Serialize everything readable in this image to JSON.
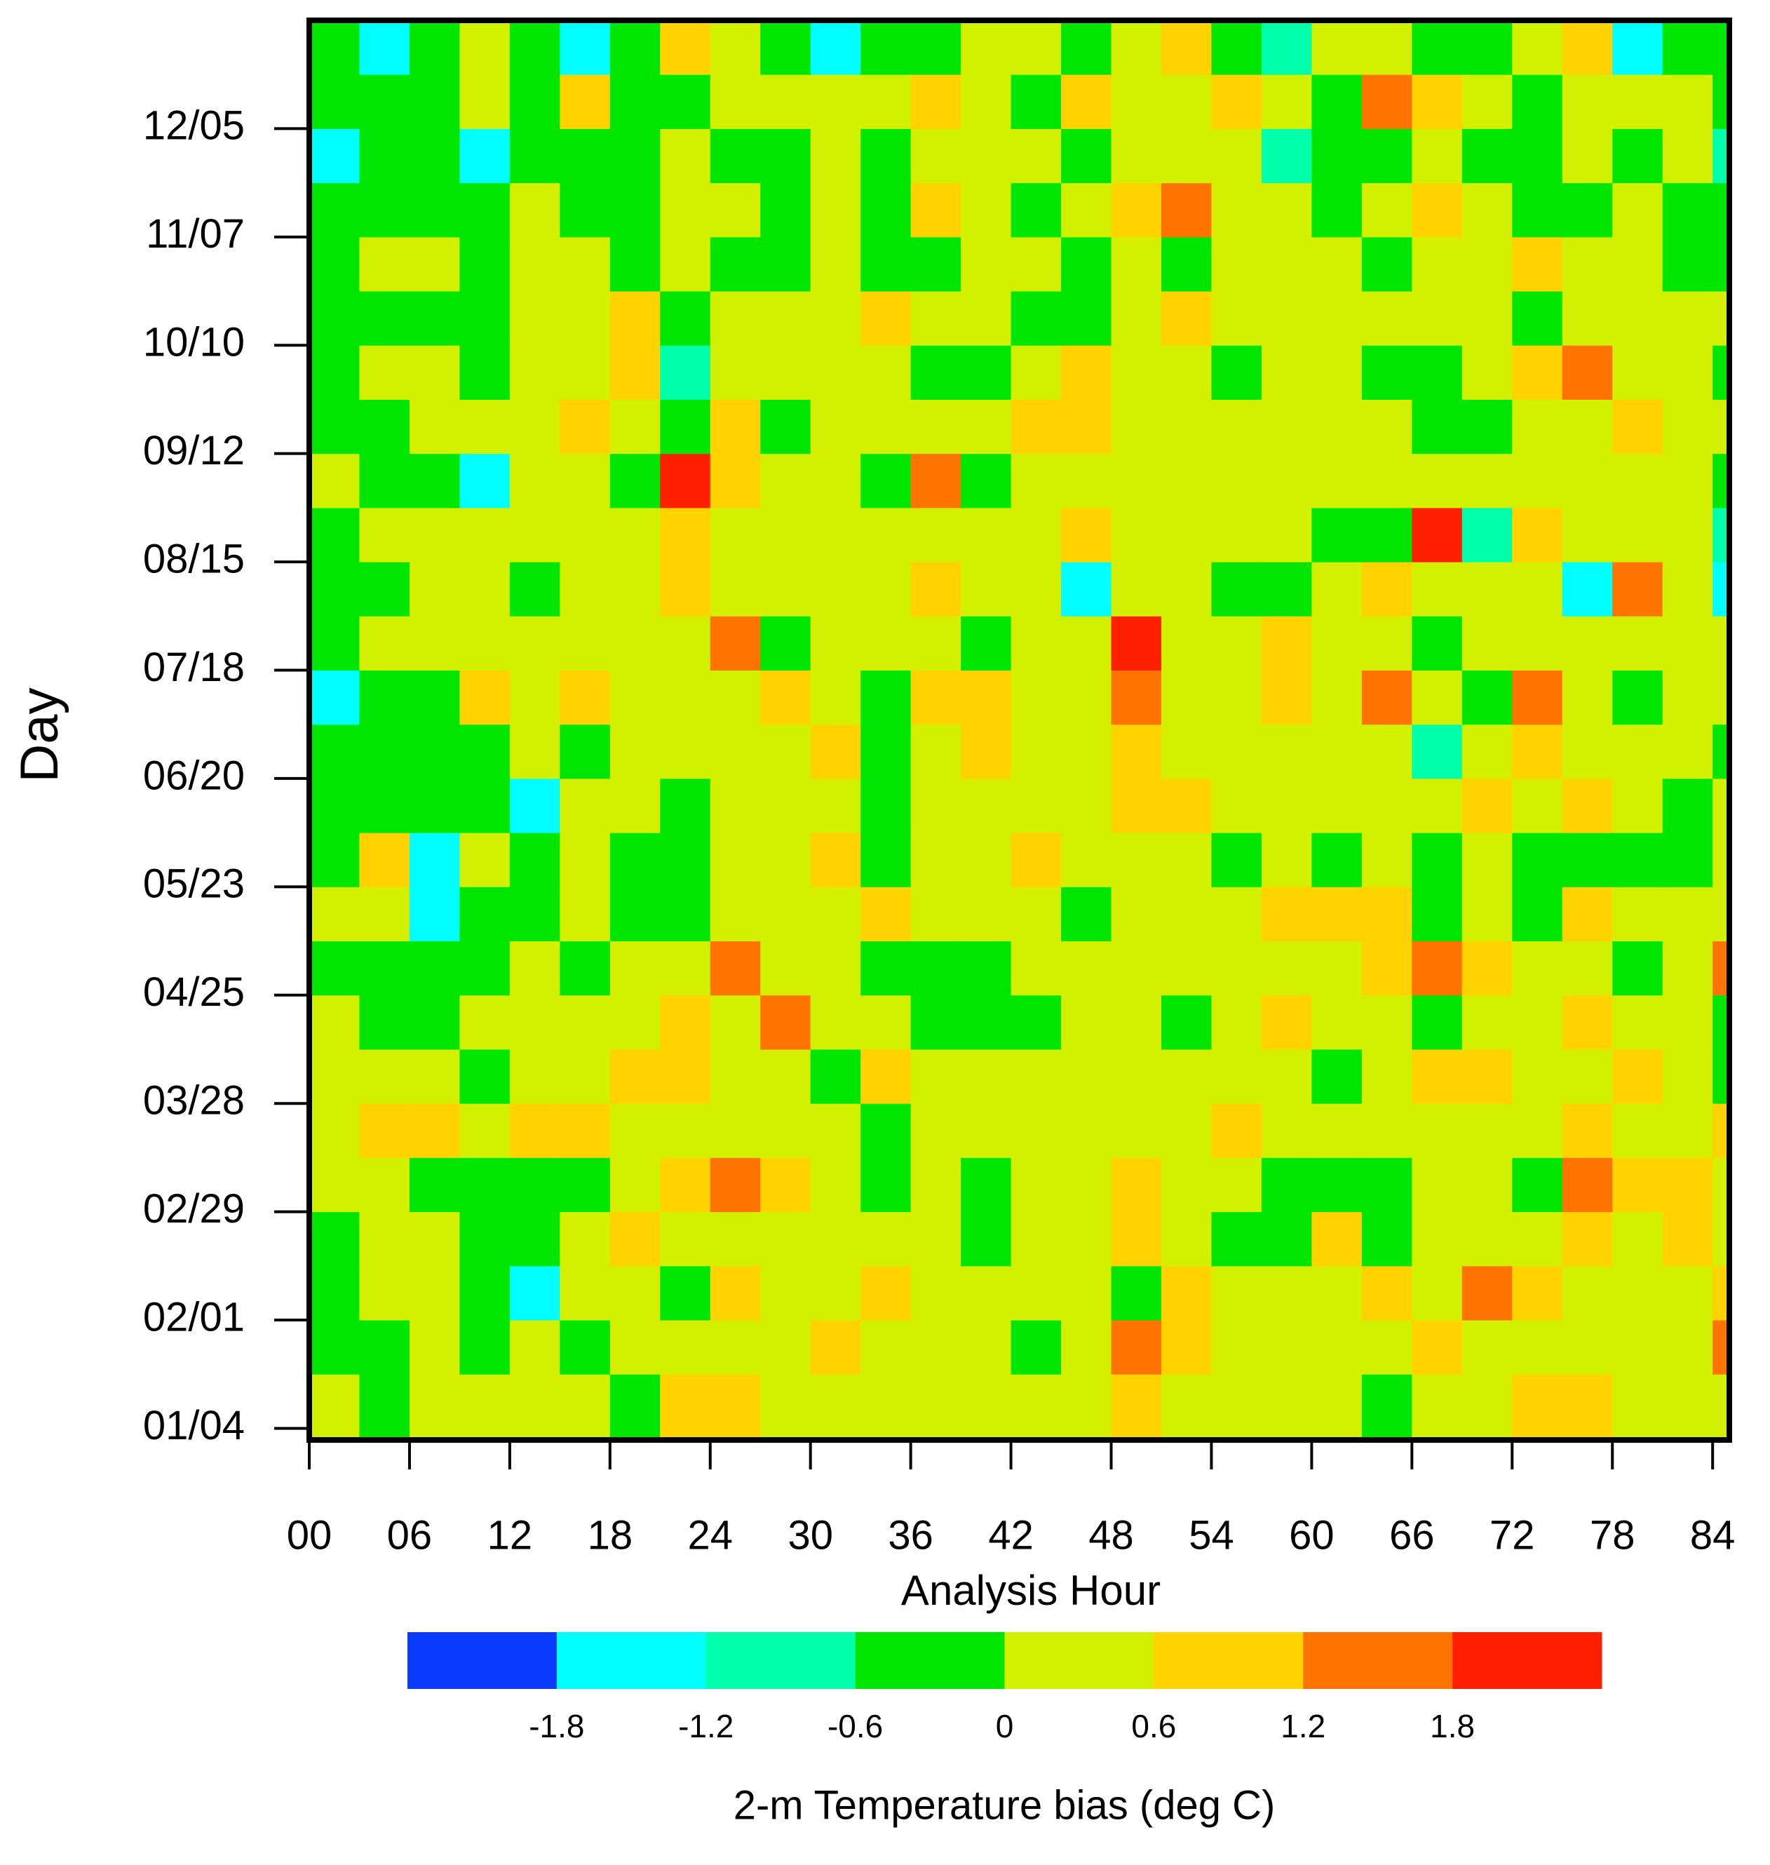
{
  "chart_data": {
    "type": "heatmap",
    "xlabel": "Analysis Hour",
    "ylabel": "Day",
    "xlim": [
      0,
      85
    ],
    "ylim": [
      -3,
      364
    ],
    "xticks": [
      {
        "value": 0,
        "label": "00"
      },
      {
        "value": 6,
        "label": "06"
      },
      12,
      18,
      24,
      30,
      36,
      42,
      48,
      54,
      60,
      66,
      72,
      78,
      84
    ],
    "yticks": [
      {
        "value": 0,
        "label": "01/04"
      },
      {
        "value": 28,
        "label": "02/01"
      },
      {
        "value": 56,
        "label": "02/29"
      },
      {
        "value": 84,
        "label": "03/28"
      },
      {
        "value": 112,
        "label": "04/25"
      },
      {
        "value": 140,
        "label": "05/23"
      },
      {
        "value": 168,
        "label": "06/20"
      },
      {
        "value": 196,
        "label": "07/18"
      },
      {
        "value": 224,
        "label": "08/15"
      },
      {
        "value": 252,
        "label": "09/12"
      },
      {
        "value": 280,
        "label": "10/10"
      },
      {
        "value": 308,
        "label": "11/07"
      },
      {
        "value": 336,
        "label": "12/05"
      }
    ],
    "x": [
      0,
      3,
      6,
      9,
      12,
      15,
      18,
      21,
      24,
      27,
      30,
      33,
      36,
      39,
      42,
      45,
      48,
      51,
      54,
      57,
      60,
      63,
      66,
      69,
      72,
      75,
      78,
      81,
      84
    ],
    "y": [
      0,
      14,
      28,
      42,
      56,
      70,
      84,
      98,
      112,
      126,
      140,
      154,
      168,
      182,
      196,
      210,
      224,
      238,
      252,
      266,
      280,
      294,
      308,
      322,
      336,
      350
    ],
    "values": [
      [
        0.3,
        -0.3,
        0.3,
        0.3,
        0.3,
        0.3,
        -0.3,
        0.9,
        0.9,
        0.3,
        0.3,
        0.3,
        0.3,
        0.3,
        0.3,
        0.3,
        0.9,
        0.3,
        0.3,
        0.3,
        0.3,
        -0.3,
        0.3,
        0.3,
        0.9,
        0.9,
        0.3,
        0.3,
        0.3
      ],
      [
        -0.3,
        -0.3,
        0.3,
        -0.3,
        0.3,
        -0.3,
        0.3,
        0.3,
        0.3,
        0.3,
        0.9,
        0.3,
        0.3,
        0.3,
        -0.3,
        0.3,
        1.5,
        0.9,
        0.3,
        0.3,
        0.3,
        0.3,
        0.9,
        0.3,
        0.3,
        0.3,
        0.3,
        0.3,
        1.5
      ],
      [
        -0.3,
        0.3,
        0.3,
        -0.3,
        -1.5,
        0.3,
        0.3,
        -0.3,
        0.9,
        0.3,
        0.3,
        0.9,
        0.3,
        0.3,
        0.3,
        0.3,
        -0.3,
        0.9,
        0.3,
        0.3,
        0.3,
        0.9,
        0.3,
        1.5,
        0.9,
        0.3,
        0.3,
        0.3,
        0.9
      ],
      [
        -0.3,
        0.3,
        0.3,
        -0.3,
        -0.3,
        0.3,
        0.9,
        0.3,
        0.3,
        0.3,
        0.3,
        0.3,
        0.3,
        -0.3,
        0.3,
        0.3,
        0.9,
        0.3,
        -0.3,
        -0.3,
        0.9,
        -0.3,
        0.3,
        0.3,
        0.3,
        0.9,
        0.3,
        0.9,
        0.3
      ],
      [
        0.3,
        0.3,
        -0.3,
        -0.3,
        -0.3,
        -0.3,
        0.3,
        0.9,
        1.5,
        0.9,
        0.3,
        -0.3,
        0.3,
        -0.3,
        0.3,
        0.3,
        0.9,
        0.3,
        0.3,
        -0.3,
        -0.3,
        -0.3,
        0.3,
        0.3,
        -0.3,
        1.5,
        0.9,
        0.9,
        0.3
      ],
      [
        0.3,
        0.9,
        0.9,
        0.3,
        0.9,
        0.9,
        0.3,
        0.3,
        0.3,
        0.3,
        0.3,
        -0.3,
        0.3,
        0.3,
        0.3,
        0.3,
        0.3,
        0.3,
        0.9,
        0.3,
        0.3,
        0.3,
        0.3,
        0.3,
        0.3,
        0.9,
        0.3,
        0.3,
        0.9
      ],
      [
        0.3,
        0.3,
        0.3,
        -0.3,
        0.3,
        0.3,
        0.9,
        0.9,
        0.3,
        0.3,
        -0.3,
        0.9,
        0.3,
        0.3,
        0.3,
        0.3,
        0.3,
        0.3,
        0.3,
        0.3,
        -0.3,
        0.3,
        0.9,
        0.9,
        0.3,
        0.3,
        0.9,
        0.3,
        -0.3
      ],
      [
        0.3,
        -0.3,
        -0.3,
        0.3,
        0.3,
        0.3,
        0.3,
        0.9,
        0.3,
        1.5,
        0.3,
        0.3,
        -0.3,
        -0.3,
        -0.3,
        0.3,
        0.3,
        -0.3,
        0.3,
        0.9,
        0.3,
        0.3,
        -0.3,
        0.3,
        0.3,
        0.9,
        0.3,
        0.3,
        -0.3
      ],
      [
        -0.3,
        -0.3,
        -0.3,
        -0.3,
        0.3,
        -0.3,
        0.3,
        0.3,
        1.5,
        0.3,
        0.3,
        -0.3,
        -0.3,
        -0.3,
        0.3,
        0.3,
        0.3,
        0.3,
        0.3,
        0.3,
        0.3,
        0.9,
        1.5,
        0.9,
        0.3,
        0.3,
        -0.3,
        0.3,
        1.5
      ],
      [
        0.3,
        0.3,
        -1.5,
        -0.3,
        -0.3,
        0.3,
        -0.3,
        -0.3,
        0.3,
        0.3,
        0.3,
        0.9,
        0.3,
        0.3,
        0.3,
        -0.3,
        0.3,
        0.3,
        0.3,
        0.9,
        0.9,
        0.9,
        -0.3,
        0.3,
        -0.3,
        0.9,
        0.3,
        0.3,
        0.3
      ],
      [
        -0.3,
        0.9,
        -1.5,
        0.3,
        -0.3,
        0.3,
        -0.3,
        -0.3,
        0.3,
        0.3,
        0.9,
        -0.3,
        0.3,
        0.3,
        0.9,
        0.3,
        0.3,
        0.3,
        -0.3,
        0.3,
        -0.3,
        0.3,
        -0.3,
        0.3,
        -0.3,
        -0.3,
        -0.3,
        -0.3,
        0.3
      ],
      [
        -0.3,
        -0.3,
        -0.3,
        -0.3,
        -1.5,
        0.3,
        0.3,
        -0.3,
        0.3,
        0.3,
        0.3,
        -0.3,
        0.3,
        0.3,
        0.3,
        0.3,
        0.9,
        0.9,
        0.3,
        0.3,
        0.3,
        0.3,
        0.3,
        0.9,
        0.3,
        0.9,
        0.3,
        -0.3,
        0.3
      ],
      [
        -0.3,
        -0.3,
        -0.3,
        -0.3,
        0.3,
        -0.3,
        0.3,
        0.3,
        0.3,
        0.3,
        0.9,
        -0.3,
        0.3,
        0.9,
        0.3,
        0.3,
        0.9,
        0.3,
        0.3,
        0.3,
        0.3,
        0.3,
        -0.9,
        0.3,
        0.9,
        0.3,
        0.3,
        0.3,
        -0.3
      ],
      [
        -1.5,
        -0.3,
        -0.3,
        0.9,
        0.3,
        0.9,
        0.3,
        0.3,
        0.3,
        0.9,
        0.3,
        -0.3,
        0.9,
        0.9,
        0.3,
        0.3,
        1.5,
        0.3,
        0.3,
        0.9,
        0.3,
        1.5,
        0.3,
        -0.3,
        1.5,
        0.3,
        -0.3,
        0.3,
        0.3
      ],
      [
        -0.3,
        0.3,
        0.3,
        0.3,
        0.3,
        0.3,
        0.3,
        0.3,
        1.5,
        -0.3,
        0.3,
        0.3,
        0.3,
        -0.3,
        0.3,
        0.3,
        2.1,
        0.3,
        0.3,
        0.9,
        0.3,
        0.3,
        -0.3,
        0.3,
        0.3,
        0.3,
        0.3,
        0.3,
        0.3
      ],
      [
        -0.3,
        -0.3,
        0.3,
        0.3,
        -0.3,
        0.3,
        0.3,
        0.9,
        0.3,
        0.3,
        0.3,
        0.3,
        0.9,
        0.3,
        0.3,
        -1.5,
        0.3,
        0.3,
        -0.3,
        -0.3,
        0.3,
        0.9,
        0.3,
        0.3,
        0.3,
        -1.5,
        1.5,
        0.3,
        -1.5
      ],
      [
        -0.3,
        0.3,
        0.3,
        0.3,
        0.3,
        0.3,
        0.3,
        0.9,
        0.3,
        0.3,
        0.3,
        0.3,
        0.3,
        0.3,
        0.3,
        0.9,
        0.3,
        0.3,
        0.3,
        0.3,
        -0.3,
        -0.3,
        2.1,
        -0.9,
        0.9,
        0.3,
        0.3,
        0.3,
        -0.9
      ],
      [
        0.3,
        -0.3,
        -0.3,
        -1.5,
        0.3,
        0.3,
        -0.3,
        2.1,
        0.9,
        0.3,
        0.3,
        -0.3,
        1.5,
        -0.3,
        0.3,
        0.3,
        0.3,
        0.3,
        0.3,
        0.3,
        0.3,
        0.3,
        0.3,
        0.3,
        0.3,
        0.3,
        0.3,
        0.3,
        -0.3
      ],
      [
        -0.3,
        -0.3,
        0.3,
        0.3,
        0.3,
        0.9,
        0.3,
        -0.3,
        0.9,
        -0.3,
        0.3,
        0.3,
        0.3,
        0.3,
        0.9,
        0.9,
        0.3,
        0.3,
        0.3,
        0.3,
        0.3,
        0.3,
        -0.3,
        -0.3,
        0.3,
        0.3,
        0.9,
        0.3,
        0.3
      ],
      [
        -0.3,
        0.3,
        0.3,
        -0.3,
        0.3,
        0.3,
        0.9,
        -0.9,
        0.3,
        0.3,
        0.3,
        0.3,
        -0.3,
        -0.3,
        0.3,
        0.9,
        0.3,
        0.3,
        -0.3,
        0.3,
        0.3,
        -0.3,
        -0.3,
        0.3,
        0.9,
        1.5,
        0.3,
        0.3,
        -0.3
      ],
      [
        -0.3,
        -0.3,
        -0.3,
        -0.3,
        0.3,
        0.3,
        0.9,
        -0.3,
        0.3,
        0.3,
        0.3,
        0.9,
        0.3,
        0.3,
        -0.3,
        -0.3,
        0.3,
        0.9,
        0.3,
        0.3,
        0.3,
        0.3,
        0.3,
        0.3,
        -0.3,
        0.3,
        0.3,
        0.3,
        0.3
      ],
      [
        -0.3,
        0.3,
        0.3,
        -0.3,
        0.3,
        0.3,
        -0.3,
        0.3,
        -0.3,
        -0.3,
        0.3,
        -0.3,
        -0.3,
        0.3,
        0.3,
        -0.3,
        0.3,
        -0.3,
        0.3,
        0.3,
        0.3,
        -0.3,
        0.3,
        0.3,
        0.9,
        0.3,
        0.3,
        -0.3,
        -0.3
      ],
      [
        -0.3,
        -0.3,
        -0.3,
        -0.3,
        0.3,
        -0.3,
        -0.3,
        0.3,
        0.3,
        -0.3,
        0.3,
        -0.3,
        0.9,
        0.3,
        -0.3,
        0.3,
        0.9,
        1.5,
        0.3,
        0.3,
        -0.3,
        0.3,
        0.9,
        0.3,
        -0.3,
        -0.3,
        0.3,
        -0.3,
        -0.3
      ],
      [
        -1.5,
        -0.3,
        -0.3,
        -1.5,
        -0.3,
        -0.3,
        -0.3,
        0.3,
        -0.3,
        -0.3,
        0.3,
        -0.3,
        0.3,
        0.3,
        0.3,
        -0.3,
        0.3,
        0.3,
        0.3,
        -0.9,
        -0.3,
        -0.3,
        0.3,
        -0.3,
        -0.3,
        0.3,
        -0.3,
        0.3,
        -0.9
      ],
      [
        -0.3,
        -0.3,
        -0.3,
        0.3,
        -0.3,
        0.9,
        -0.3,
        -0.3,
        0.3,
        0.3,
        0.3,
        0.3,
        0.9,
        0.3,
        -0.3,
        0.9,
        0.3,
        0.3,
        0.9,
        0.3,
        -0.3,
        1.5,
        0.9,
        0.3,
        -0.3,
        0.3,
        0.3,
        0.3,
        -0.3
      ],
      [
        -0.3,
        -1.5,
        -0.3,
        0.3,
        -0.3,
        -1.5,
        -0.3,
        0.9,
        0.3,
        -0.3,
        -1.5,
        -0.3,
        -0.3,
        0.3,
        0.3,
        -0.3,
        0.3,
        0.9,
        -0.3,
        -0.9,
        0.3,
        0.3,
        -0.3,
        -0.3,
        0.3,
        0.9,
        -1.5,
        -0.3,
        -0.3
      ]
    ],
    "colorbar": {
      "title": "2-m Temperature bias (deg C)",
      "levels": [
        -1.8,
        -1.2,
        -0.6,
        0,
        0.6,
        1.2,
        1.8
      ],
      "colors": [
        "#0a3cff",
        "#00ffff",
        "#00ffaa",
        "#00e600",
        "#d2f000",
        "#ffd200",
        "#ff7300",
        "#ff2000"
      ]
    }
  }
}
